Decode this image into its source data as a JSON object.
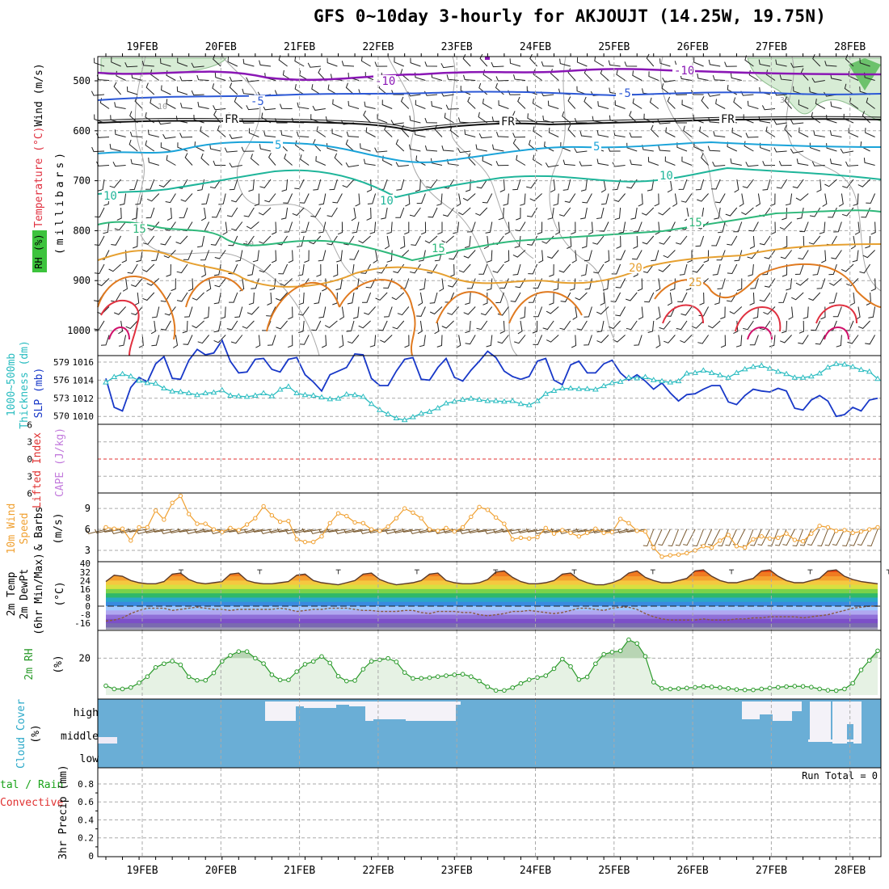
{
  "title": "GFS 0~10day 3-hourly for AKJOUJT (14.25W, 19.75N)",
  "dates": [
    "19FEB",
    "20FEB",
    "21FEB",
    "22FEB",
    "23FEB",
    "24FEB",
    "25FEB",
    "26FEB",
    "27FEB",
    "28FEB"
  ],
  "colors": {
    "purple": "#8a17b5",
    "blue": "#2c58d6",
    "cyan": "#1aa3d9",
    "teal": "#1fb59a",
    "green": "#2eb87a",
    "orange": "#e6a030",
    "darkorange": "#e07a20",
    "red": "#e0303f",
    "magenta": "#d0106a",
    "slp": "#1838c8",
    "thick": "#29bcc0",
    "wind": "#f0a030",
    "cloud": "#6aaed6",
    "rh": "#2a9a2a",
    "li": "#e03030",
    "cape": "#c27adc"
  },
  "panels": {
    "profile": {
      "label_wind": "Wind (m/s)",
      "label_temp": "Temperature (°C)",
      "label_rh": "RH (%)",
      "label_mb": "(millibars)",
      "yticks": [
        "500",
        "600",
        "700",
        "800",
        "900",
        "1000"
      ],
      "contour_labels": [
        "-10",
        "-5",
        "FR",
        "5",
        "10",
        "15",
        "20",
        "25"
      ]
    },
    "slp": {
      "label_thick": "1000~500mb Thickness (dm)",
      "label_slp": "SLP (mb)",
      "left_ticks": [
        "579",
        "576",
        "573",
        "570"
      ],
      "right_ticks": [
        "1016",
        "1014",
        "1012",
        "1010"
      ]
    },
    "li": {
      "label_li": "Lifted Index",
      "label_cape": "CAPE (J/kg)",
      "yticks": [
        "6",
        "3",
        "0",
        "3",
        "6"
      ]
    },
    "wind": {
      "label1": "10m Wind",
      "label2": "Speed",
      "label3": "& Barbs",
      "label4": "(m/s)",
      "yticks": [
        "9",
        "6",
        "3"
      ]
    },
    "temp": {
      "label1": "2m Temp",
      "label2": "2m DewPt",
      "label3": "(6hr Min/Max)",
      "label4": "(°C)",
      "yticks": [
        "40",
        "32",
        "24",
        "16",
        "8",
        "0",
        "-8",
        "-16"
      ]
    },
    "rh": {
      "label1": "2m RH",
      "label2": "(%)",
      "yticks": [
        "20"
      ]
    },
    "cloud": {
      "label1": "Cloud Cover",
      "label2": "(%)",
      "levels": [
        "high",
        "middle",
        "low"
      ]
    },
    "precip": {
      "label1": "tal / Rain",
      "label2": "Convective",
      "label3": "3hr Precip (mm)",
      "run_total": "Run Total = 0",
      "yticks": [
        "0.8",
        "0.6",
        "0.4",
        "0.2",
        "0"
      ]
    }
  },
  "chart_data": [
    {
      "type": "line",
      "title": "1000~500mb Thickness / SLP",
      "series": [
        {
          "name": "SLP (mb)",
          "values": [
            1014.2,
            1011.0,
            1010.6,
            1013.2,
            1014.3,
            1013.8,
            1015.8,
            1016.6,
            1014.2,
            1014.1,
            1016.2,
            1017.4,
            1016.8,
            1017.0,
            1018.4,
            1016.1,
            1014.8,
            1014.9,
            1016.3,
            1016.4,
            1015.2,
            1014.9,
            1016.3,
            1016.5,
            1014.6,
            1013.8,
            1012.8,
            1014.6,
            1015.0,
            1015.4,
            1016.9,
            1016.8,
            1014.2,
            1013.4,
            1013.4,
            1015.0,
            1016.3,
            1016.5,
            1014.1,
            1014.0,
            1015.4,
            1016.4,
            1014.3,
            1013.9,
            1015.1,
            1016.1,
            1017.2,
            1016.5,
            1015.0,
            1014.4,
            1014.1,
            1014.4,
            1016.1,
            1016.4,
            1014.0,
            1013.5,
            1015.7,
            1016.1,
            1014.8,
            1014.8,
            1015.8,
            1016.2,
            1014.8,
            1014.0,
            1014.6,
            1013.9,
            1013.0,
            1013.7,
            1012.6,
            1011.7,
            1012.4,
            1012.5,
            1013.0,
            1013.4,
            1013.4,
            1011.6,
            1011.3,
            1012.3,
            1013.0,
            1012.8,
            1012.7,
            1013.1,
            1012.8,
            1010.9,
            1010.7,
            1011.8,
            1012.3,
            1011.7,
            1010.0,
            1010.2,
            1011.0,
            1010.6,
            1011.8,
            1012.0
          ]
        },
        {
          "name": "1000~500mb Thickness (dm)",
          "values": [
            575.6,
            576.5,
            577.0,
            576.6,
            575.9,
            575.5,
            575.4,
            574.6,
            574.1,
            574.0,
            573.8,
            573.5,
            573.8,
            573.9,
            574.3,
            573.4,
            573.3,
            573.2,
            573.4,
            573.8,
            573.3,
            574.4,
            574.9,
            573.8,
            573.5,
            573.4,
            573.1,
            572.8,
            572.9,
            573.6,
            573.5,
            573.2,
            572.0,
            571.0,
            570.3,
            569.6,
            569.3,
            569.8,
            570.4,
            570.7,
            571.3,
            572.1,
            572.4,
            572.7,
            572.9,
            572.7,
            572.5,
            572.5,
            572.4,
            572.5,
            572.0,
            571.8,
            572.5,
            573.7,
            574.2,
            574.6,
            574.6,
            574.5,
            574.5,
            574.4,
            575.0,
            575.5,
            575.7,
            576.4,
            576.3,
            576.5,
            576.0,
            575.8,
            575.6,
            575.8,
            577.1,
            577.2,
            577.6,
            577.2,
            576.8,
            576.4,
            577.2,
            577.8,
            578.2,
            578.4,
            577.9,
            577.4,
            577.0,
            576.4,
            576.4,
            576.6,
            577.1,
            578.1,
            578.7,
            578.6,
            578.2,
            577.7,
            577.4,
            576.2
          ]
        }
      ],
      "ylim_left": [
        569,
        580
      ],
      "ylim_right": [
        1009,
        1019
      ]
    },
    {
      "type": "line",
      "title": "10m Wind Speed",
      "series": [
        {
          "name": "10m Wind Speed (m/s)",
          "values": [
            6.3,
            6.1,
            6.1,
            4.4,
            6.3,
            6.3,
            8.7,
            7.4,
            9.8,
            10.8,
            8.2,
            6.8,
            6.8,
            6.0,
            5.6,
            6.2,
            5.9,
            6.7,
            7.6,
            9.3,
            8.0,
            7.1,
            7.2,
            4.6,
            4.2,
            4.2,
            5.0,
            6.9,
            8.3,
            7.9,
            7.0,
            6.9,
            6.0,
            5.8,
            6.4,
            7.6,
            9.0,
            8.4,
            7.6,
            6.0,
            5.8,
            6.2,
            5.7,
            6.3,
            7.8,
            9.2,
            8.8,
            7.7,
            6.8,
            4.6,
            4.8,
            4.7,
            4.9,
            6.2,
            5.4,
            5.9,
            5.5,
            5.0,
            5.5,
            6.1,
            5.5,
            5.6,
            7.5,
            6.9,
            5.8,
            5.7,
            3.4,
            2.1,
            2.3,
            2.4,
            2.6,
            3.0,
            3.6,
            3.4,
            4.4,
            5.2,
            3.6,
            3.4,
            4.6,
            5.0,
            4.7,
            4.8,
            5.4,
            4.5,
            4.3,
            5.4,
            6.5,
            6.3,
            5.8,
            5.9,
            5.5,
            5.7,
            6.0,
            6.3
          ]
        }
      ],
      "ylim": [
        1.5,
        10.5
      ]
    },
    {
      "type": "area",
      "title": "2m RH",
      "series": [
        {
          "name": "2m RH (%)",
          "values": [
            5,
            3.3,
            3.3,
            4.1,
            6.6,
            10,
            15,
            17,
            18.4,
            16.4,
            9.9,
            8,
            8,
            12,
            18.3,
            21.5,
            23.6,
            23.6,
            20,
            17.1,
            11,
            8.2,
            8.2,
            12.7,
            16.7,
            18.2,
            20.9,
            17.4,
            10.2,
            7.6,
            7.9,
            14,
            18.3,
            19.1,
            19.9,
            18,
            12.2,
            9,
            9.1,
            9.4,
            10,
            10.5,
            11,
            11.3,
            10,
            7.6,
            4.5,
            2.5,
            2.5,
            4,
            6.3,
            8.3,
            9.5,
            10.5,
            14.3,
            19.5,
            15.5,
            8.4,
            9.8,
            17,
            22.1,
            23.3,
            24,
            30,
            28,
            21,
            7,
            3.6,
            3.3,
            3.5,
            3.8,
            4.2,
            4.6,
            4.4,
            4.0,
            3.6,
            3.0,
            2.8,
            2.8,
            3.3,
            3.8,
            4.2,
            4.6,
            4.8,
            4.7,
            4.3,
            3.3,
            2.6,
            2.4,
            3.3,
            6.4,
            13.6,
            18.8,
            24
          ]
        }
      ],
      "ylim": [
        0,
        34
      ]
    },
    {
      "type": "area",
      "title": "2m Temp / DewPt",
      "series": [
        {
          "name": "2m Temp (°C)",
          "values": [
            23,
            29,
            28,
            24,
            22,
            21,
            21,
            23,
            30,
            31,
            25,
            22,
            21,
            22,
            23,
            30,
            31,
            24,
            22,
            21,
            21,
            22,
            23,
            29,
            30,
            24,
            22,
            21,
            20,
            22,
            24,
            30,
            31,
            25,
            22,
            20,
            21,
            22,
            24,
            30,
            31,
            24,
            22,
            21,
            21,
            22,
            25,
            32,
            33,
            27,
            23,
            21,
            21,
            22,
            24,
            30,
            31,
            25,
            22,
            20,
            20,
            22,
            25,
            31,
            33,
            27,
            24,
            22,
            22,
            24,
            26,
            33,
            34,
            28,
            24,
            22,
            22,
            24,
            26,
            33,
            34,
            28,
            24,
            22,
            22,
            24,
            26,
            33,
            34,
            28,
            25,
            23,
            22,
            21
          ]
        },
        {
          "name": "2m DewPt (°C)",
          "values": [
            -14,
            -13,
            -11,
            -7,
            -4,
            -2,
            -2,
            -2,
            -4,
            -3,
            -2,
            -1,
            -2,
            -3,
            -3,
            -4,
            -3,
            -3,
            -3,
            -3,
            -3,
            -2,
            -3,
            -5,
            -4,
            -3,
            -3,
            -2,
            -2,
            -2,
            -3,
            -4,
            -4,
            -5,
            -5,
            -5,
            -4,
            -4,
            -6,
            -7,
            -5,
            -5,
            -5,
            -6,
            -6,
            -8,
            -9,
            -8,
            -7,
            -5,
            -5,
            -4,
            -5,
            -6,
            -7,
            -6,
            -4,
            -2,
            -2,
            -3,
            -4,
            -2,
            -1,
            -1,
            -3,
            -7,
            -10,
            -12,
            -13,
            -13,
            -13,
            -13,
            -12,
            -13,
            -13,
            -13,
            -12,
            -12,
            -11,
            -11,
            -10,
            -10,
            -10,
            -10,
            -11,
            -10,
            -9,
            -8,
            -6,
            -4,
            -2,
            -1,
            0,
            0
          ]
        }
      ],
      "ylim": [
        -24,
        42
      ]
    },
    {
      "type": "bar",
      "title": "3hr Precip",
      "values": [
        0,
        0,
        0,
        0,
        0,
        0,
        0,
        0,
        0,
        0
      ],
      "ylim": [
        0,
        0.9
      ]
    }
  ]
}
